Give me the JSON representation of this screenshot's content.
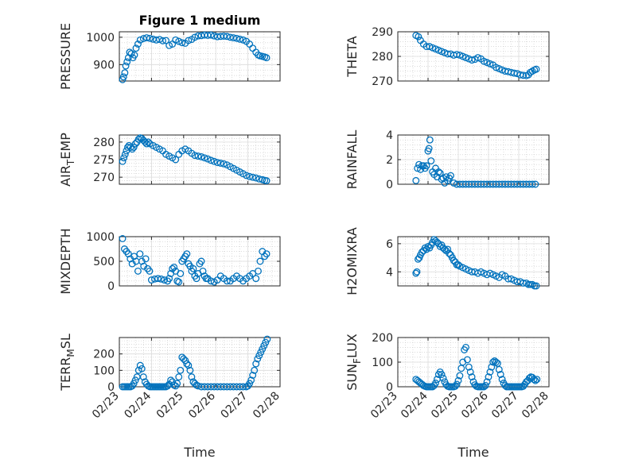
{
  "chart_data": [
    {
      "panel": "pressure",
      "type": "scatter",
      "title": "Figure 1 medium",
      "ylabel": "PRESSURE",
      "ylabel_sub": "",
      "ylim": [
        840,
        1020
      ],
      "yticks": [
        900,
        1000
      ],
      "ytick_labels": [
        "900",
        "1000"
      ],
      "xlim": [
        0,
        5
      ],
      "xtick_labels": [],
      "xlabel": "",
      "x": [
        0.1,
        0.13,
        0.17,
        0.2,
        0.24,
        0.28,
        0.32,
        0.37,
        0.42,
        0.47,
        0.52,
        0.58,
        0.65,
        0.75,
        0.85,
        0.95,
        1.05,
        1.15,
        1.25,
        1.35,
        1.45,
        1.55,
        1.65,
        1.75,
        1.85,
        1.95,
        2.05,
        2.15,
        2.25,
        2.35,
        2.45,
        2.55,
        2.65,
        2.75,
        2.85,
        2.95,
        3.05,
        3.15,
        3.25,
        3.35,
        3.45,
        3.55,
        3.65,
        3.75,
        3.85,
        3.95,
        4.05,
        4.15,
        4.25,
        4.32,
        4.38,
        4.45,
        4.52,
        4.58
      ],
      "values": [
        845,
        855,
        870,
        895,
        910,
        925,
        945,
        940,
        925,
        935,
        960,
        975,
        990,
        995,
        998,
        996,
        993,
        990,
        992,
        987,
        988,
        970,
        975,
        990,
        985,
        980,
        978,
        988,
        992,
        1000,
        1005,
        1006,
        1008,
        1007,
        1008,
        1005,
        1002,
        1003,
        1004,
        1003,
        1000,
        998,
        996,
        993,
        990,
        985,
        975,
        960,
        945,
        935,
        932,
        930,
        928,
        925
      ]
    },
    {
      "panel": "theta",
      "type": "scatter",
      "ylabel": "THETA",
      "ylabel_sub": "",
      "ylim": [
        270,
        290
      ],
      "yticks": [
        270,
        280,
        290
      ],
      "ytick_labels": [
        "270",
        "280",
        "290"
      ],
      "xlim": [
        0,
        5
      ],
      "xtick_labels": [],
      "xlabel": "",
      "x": [
        0.6,
        0.68,
        0.75,
        0.85,
        0.95,
        1.05,
        1.15,
        1.25,
        1.35,
        1.45,
        1.55,
        1.65,
        1.75,
        1.85,
        1.95,
        2.05,
        2.15,
        2.25,
        2.35,
        2.45,
        2.55,
        2.65,
        2.75,
        2.85,
        2.95,
        3.05,
        3.15,
        3.25,
        3.35,
        3.45,
        3.55,
        3.65,
        3.75,
        3.85,
        3.95,
        4.05,
        4.15,
        4.25,
        4.32,
        4.38,
        4.45,
        4.52,
        4.58
      ],
      "values": [
        288.5,
        288,
        286.5,
        285,
        284,
        284,
        283.5,
        283,
        282.5,
        282,
        281.5,
        281,
        281,
        280.5,
        280.8,
        280.5,
        280,
        279.5,
        279,
        278.5,
        278.8,
        279.5,
        279,
        278,
        277.5,
        277,
        276.5,
        275.5,
        275,
        274.5,
        274,
        273.8,
        273.5,
        273.2,
        273,
        272.5,
        272.3,
        272.2,
        272.5,
        273.5,
        274,
        274.5,
        274.8
      ]
    },
    {
      "panel": "air_temp",
      "type": "scatter",
      "ylabel": "AIR",
      "ylabel_sub": "T",
      "ylabel_suffix": "EMP",
      "ylim": [
        268,
        282
      ],
      "yticks": [
        270,
        275,
        280
      ],
      "ytick_labels": [
        "270",
        "275",
        "280"
      ],
      "xlim": [
        0,
        5
      ],
      "xtick_labels": [],
      "xlabel": "",
      "x": [
        0.1,
        0.14,
        0.18,
        0.22,
        0.26,
        0.3,
        0.35,
        0.4,
        0.45,
        0.5,
        0.55,
        0.6,
        0.65,
        0.7,
        0.75,
        0.8,
        0.85,
        0.9,
        0.95,
        1.05,
        1.15,
        1.25,
        1.35,
        1.45,
        1.55,
        1.65,
        1.75,
        1.85,
        1.95,
        2.05,
        2.15,
        2.25,
        2.35,
        2.45,
        2.55,
        2.65,
        2.75,
        2.85,
        2.95,
        3.05,
        3.15,
        3.25,
        3.35,
        3.45,
        3.55,
        3.65,
        3.75,
        3.85,
        3.95,
        4.05,
        4.15,
        4.25,
        4.35,
        4.45,
        4.52,
        4.58
      ],
      "values": [
        274.5,
        275.5,
        276.5,
        277.5,
        278.5,
        279,
        278.5,
        278,
        278.5,
        279.5,
        280,
        280.8,
        281.2,
        281,
        280.5,
        280,
        279.5,
        280,
        279.5,
        279,
        278.5,
        278,
        277.5,
        276.5,
        276,
        275.5,
        275,
        276.5,
        277.5,
        278,
        277.5,
        276.8,
        276.2,
        276,
        275.8,
        275.5,
        275.2,
        274.8,
        274.5,
        274.2,
        274,
        273.8,
        273.5,
        273,
        272.5,
        272,
        271.5,
        271,
        270.5,
        270.2,
        270,
        269.8,
        269.5,
        269.3,
        269.1,
        269
      ]
    },
    {
      "panel": "rainfall",
      "type": "scatter",
      "ylabel": "RAINFALL",
      "ylabel_sub": "",
      "ylim": [
        0,
        4
      ],
      "yticks": [
        0,
        2,
        4
      ],
      "ytick_labels": [
        "0",
        "2",
        "4"
      ],
      "xlim": [
        0,
        5
      ],
      "xtick_labels": [],
      "xlabel": "",
      "x": [
        0.6,
        0.65,
        0.7,
        0.75,
        0.8,
        0.85,
        0.9,
        0.95,
        1.0,
        1.03,
        1.06,
        1.1,
        1.15,
        1.2,
        1.25,
        1.3,
        1.35,
        1.4,
        1.45,
        1.5,
        1.55,
        1.6,
        1.65,
        1.7,
        1.75,
        1.85,
        1.95,
        2.05,
        2.15,
        2.25,
        2.35,
        2.45,
        2.55,
        2.65,
        2.75,
        2.85,
        2.95,
        3.05,
        3.15,
        3.25,
        3.35,
        3.45,
        3.55,
        3.65,
        3.75,
        3.85,
        3.95,
        4.05,
        4.15,
        4.25,
        4.35,
        4.45,
        4.55
      ],
      "values": [
        0.3,
        1.3,
        1.6,
        1.2,
        1.5,
        1.5,
        1.3,
        1.5,
        2.7,
        2.9,
        3.6,
        1.9,
        1.0,
        0.8,
        1.3,
        0.6,
        1.0,
        0.9,
        0.4,
        0.5,
        0.1,
        0.6,
        0.3,
        0.5,
        0.7,
        0.1,
        0,
        0,
        0,
        0,
        0,
        0,
        0,
        0,
        0,
        0,
        0,
        0,
        0,
        0,
        0,
        0,
        0,
        0,
        0,
        0,
        0,
        0,
        0,
        0,
        0,
        0,
        0
      ]
    },
    {
      "panel": "mixdepth",
      "type": "scatter",
      "ylabel": "MIXDEPTH",
      "ylabel_sub": "",
      "ylim": [
        0,
        1000
      ],
      "yticks": [
        0,
        500,
        1000
      ],
      "ytick_labels": [
        "0",
        "500",
        "1000"
      ],
      "xlim": [
        0,
        5
      ],
      "xtick_labels": [],
      "xlabel": "",
      "x": [
        0.1,
        0.16,
        0.22,
        0.28,
        0.34,
        0.4,
        0.46,
        0.52,
        0.58,
        0.64,
        0.7,
        0.76,
        0.82,
        0.88,
        0.94,
        1.0,
        1.1,
        1.2,
        1.3,
        1.4,
        1.5,
        1.55,
        1.6,
        1.65,
        1.7,
        1.75,
        1.8,
        1.85,
        1.9,
        1.95,
        2.0,
        2.05,
        2.1,
        2.15,
        2.2,
        2.25,
        2.3,
        2.35,
        2.4,
        2.45,
        2.5,
        2.55,
        2.6,
        2.65,
        2.7,
        2.75,
        2.85,
        2.95,
        3.05,
        3.15,
        3.25,
        3.35,
        3.45,
        3.55,
        3.65,
        3.75,
        3.85,
        3.95,
        4.05,
        4.15,
        4.25,
        4.32,
        4.38,
        4.45,
        4.52,
        4.58
      ],
      "values": [
        960,
        750,
        700,
        650,
        550,
        450,
        600,
        500,
        300,
        650,
        500,
        400,
        550,
        350,
        300,
        120,
        140,
        150,
        140,
        120,
        100,
        150,
        250,
        350,
        380,
        300,
        100,
        80,
        250,
        500,
        550,
        600,
        650,
        450,
        400,
        300,
        350,
        200,
        150,
        250,
        450,
        500,
        300,
        200,
        150,
        150,
        100,
        80,
        120,
        200,
        150,
        100,
        100,
        150,
        200,
        150,
        100,
        150,
        200,
        250,
        150,
        300,
        500,
        700,
        600,
        650
      ]
    },
    {
      "panel": "h2omixra",
      "type": "scatter",
      "ylabel": "H2OMIXRA",
      "ylabel_sub": "",
      "ylim": [
        3,
        6.5
      ],
      "yticks": [
        4,
        6
      ],
      "ytick_labels": [
        "4",
        "6"
      ],
      "xlim": [
        0,
        5
      ],
      "xtick_labels": [],
      "xlabel": "",
      "x": [
        0.6,
        0.63,
        0.67,
        0.71,
        0.75,
        0.8,
        0.85,
        0.9,
        0.95,
        1.0,
        1.05,
        1.1,
        1.15,
        1.2,
        1.25,
        1.3,
        1.35,
        1.4,
        1.45,
        1.5,
        1.55,
        1.6,
        1.65,
        1.7,
        1.75,
        1.8,
        1.85,
        1.9,
        1.95,
        2.0,
        2.05,
        2.15,
        2.25,
        2.35,
        2.45,
        2.55,
        2.65,
        2.75,
        2.85,
        2.95,
        3.05,
        3.15,
        3.25,
        3.35,
        3.45,
        3.55,
        3.65,
        3.75,
        3.85,
        3.95,
        4.05,
        4.15,
        4.25,
        4.32,
        4.38,
        4.45,
        4.52,
        4.58
      ],
      "values": [
        3.9,
        4.0,
        4.9,
        5.0,
        5.2,
        5.4,
        5.5,
        5.7,
        5.6,
        5.8,
        5.7,
        5.9,
        6.1,
        6.3,
        6.2,
        6.1,
        6.0,
        5.8,
        5.9,
        5.7,
        5.6,
        5.5,
        5.6,
        5.3,
        5.2,
        5.0,
        4.8,
        4.7,
        4.5,
        4.5,
        4.4,
        4.3,
        4.2,
        4.1,
        4.0,
        4.0,
        3.9,
        4.0,
        3.9,
        3.8,
        3.9,
        3.8,
        3.7,
        3.6,
        3.8,
        3.7,
        3.5,
        3.5,
        3.4,
        3.3,
        3.3,
        3.2,
        3.2,
        3.1,
        3.1,
        3.1,
        3.0,
        3.0
      ]
    },
    {
      "panel": "terr_msl",
      "type": "scatter",
      "ylabel": "TERR",
      "ylabel_sub": "M",
      "ylabel_suffix": "SL",
      "ylim": [
        0,
        300
      ],
      "yticks": [
        0,
        100,
        200
      ],
      "ytick_labels": [
        "0",
        "100",
        "200"
      ],
      "xlim": [
        0,
        5
      ],
      "xtick_labels": [
        "02/23",
        "02/24",
        "02/25",
        "02/26",
        "02/27",
        "02/28"
      ],
      "xlabel": "Time",
      "x": [
        0.1,
        0.15,
        0.2,
        0.25,
        0.3,
        0.35,
        0.4,
        0.45,
        0.5,
        0.55,
        0.6,
        0.65,
        0.7,
        0.75,
        0.8,
        0.85,
        0.9,
        0.95,
        1.0,
        1.05,
        1.1,
        1.15,
        1.2,
        1.25,
        1.3,
        1.35,
        1.4,
        1.45,
        1.5,
        1.55,
        1.6,
        1.65,
        1.7,
        1.75,
        1.8,
        1.85,
        1.9,
        1.95,
        2.0,
        2.05,
        2.1,
        2.15,
        2.2,
        2.25,
        2.3,
        2.35,
        2.4,
        2.45,
        2.55,
        2.65,
        2.75,
        2.85,
        2.95,
        3.05,
        3.15,
        3.25,
        3.35,
        3.45,
        3.55,
        3.65,
        3.75,
        3.85,
        3.95,
        4.0,
        4.05,
        4.1,
        4.15,
        4.2,
        4.25,
        4.3,
        4.35,
        4.4,
        4.45,
        4.5,
        4.55,
        4.6
      ],
      "values": [
        0,
        0,
        0,
        0,
        0,
        0,
        5,
        20,
        40,
        60,
        100,
        130,
        110,
        60,
        30,
        15,
        5,
        0,
        0,
        0,
        0,
        0,
        0,
        0,
        0,
        0,
        0,
        0,
        5,
        15,
        40,
        30,
        10,
        5,
        20,
        60,
        100,
        180,
        170,
        160,
        140,
        130,
        100,
        60,
        30,
        20,
        10,
        5,
        0,
        0,
        0,
        0,
        0,
        0,
        0,
        0,
        0,
        0,
        0,
        0,
        0,
        0,
        0,
        5,
        20,
        40,
        70,
        100,
        140,
        170,
        190,
        210,
        230,
        250,
        270,
        290
      ]
    },
    {
      "panel": "sun_flux",
      "type": "scatter",
      "ylabel": "SUN",
      "ylabel_sub": "F",
      "ylabel_suffix": "LUX",
      "ylim": [
        0,
        200
      ],
      "yticks": [
        0,
        100,
        200
      ],
      "ytick_labels": [
        "0",
        "100",
        "200"
      ],
      "xlim": [
        0,
        5
      ],
      "xtick_labels": [
        "02/23",
        "02/24",
        "02/25",
        "02/26",
        "02/27",
        "02/28"
      ],
      "xlabel": "Time",
      "x": [
        0.6,
        0.65,
        0.7,
        0.75,
        0.8,
        0.85,
        0.9,
        0.95,
        1.0,
        1.05,
        1.1,
        1.15,
        1.2,
        1.25,
        1.3,
        1.35,
        1.4,
        1.45,
        1.5,
        1.55,
        1.6,
        1.65,
        1.7,
        1.75,
        1.8,
        1.85,
        1.9,
        1.95,
        2.0,
        2.05,
        2.1,
        2.15,
        2.2,
        2.25,
        2.3,
        2.35,
        2.4,
        2.45,
        2.5,
        2.55,
        2.6,
        2.65,
        2.7,
        2.75,
        2.8,
        2.85,
        2.9,
        2.95,
        3.0,
        3.05,
        3.1,
        3.15,
        3.2,
        3.25,
        3.3,
        3.35,
        3.4,
        3.45,
        3.5,
        3.55,
        3.6,
        3.65,
        3.7,
        3.75,
        3.8,
        3.85,
        3.9,
        3.95,
        4.0,
        4.05,
        4.1,
        4.15,
        4.2,
        4.25,
        4.3,
        4.35,
        4.4,
        4.45,
        4.5,
        4.55,
        4.6
      ],
      "values": [
        30,
        25,
        20,
        15,
        10,
        5,
        2,
        0,
        0,
        0,
        0,
        0,
        5,
        15,
        30,
        50,
        60,
        50,
        35,
        20,
        8,
        2,
        0,
        0,
        0,
        0,
        2,
        10,
        25,
        45,
        75,
        100,
        150,
        160,
        110,
        80,
        60,
        40,
        20,
        8,
        2,
        0,
        0,
        0,
        0,
        0,
        5,
        20,
        40,
        60,
        80,
        100,
        105,
        100,
        95,
        70,
        50,
        30,
        15,
        5,
        0,
        0,
        0,
        0,
        0,
        0,
        0,
        0,
        0,
        0,
        0,
        2,
        10,
        20,
        25,
        35,
        40,
        38,
        30,
        25,
        30
      ]
    }
  ],
  "colors": {
    "marker": "#0072bd",
    "axis": "#262626",
    "background": "#ffffff"
  }
}
